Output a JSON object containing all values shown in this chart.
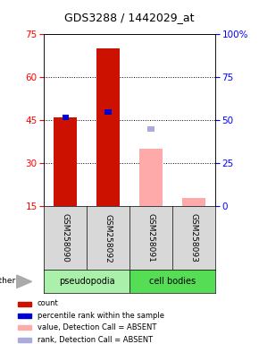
{
  "title": "GDS3288 / 1442029_at",
  "samples": [
    "GSM258090",
    "GSM258092",
    "GSM258091",
    "GSM258093"
  ],
  "groups": [
    "pseudopodia",
    "pseudopodia",
    "cell bodies",
    "cell bodies"
  ],
  "count_values": [
    46,
    70,
    null,
    null
  ],
  "count_color": "#cc1100",
  "absent_value_values": [
    null,
    null,
    35,
    18
  ],
  "absent_value_color": "#ffaaaa",
  "percentile_rank_values": [
    46,
    48,
    null,
    null
  ],
  "percentile_rank_color": "#0000cc",
  "absent_rank_values": [
    null,
    null,
    42,
    null
  ],
  "absent_rank_color": "#aaaadd",
  "ylim_left": [
    15,
    75
  ],
  "ylim_right": [
    0,
    100
  ],
  "yticks_left": [
    15,
    30,
    45,
    60,
    75
  ],
  "yticks_right": [
    0,
    25,
    50,
    75,
    100
  ],
  "bar_width": 0.55,
  "legend_items": [
    {
      "label": "count",
      "color": "#cc1100"
    },
    {
      "label": "percentile rank within the sample",
      "color": "#0000cc"
    },
    {
      "label": "value, Detection Call = ABSENT",
      "color": "#ffaaaa"
    },
    {
      "label": "rank, Detection Call = ABSENT",
      "color": "#aaaadd"
    }
  ],
  "pseudo_color": "#aaf0aa",
  "cb_color": "#55dd55",
  "bg_color": "#d8d8d8",
  "plot_bg_color": "#ffffff",
  "title_fontsize": 9,
  "tick_fontsize": 7.5,
  "label_fontsize": 6.5,
  "group_fontsize": 7
}
